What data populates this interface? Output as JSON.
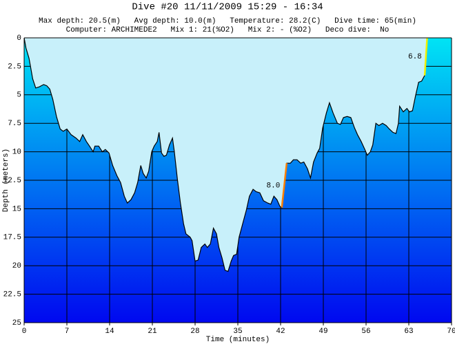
{
  "chart_data": {
    "type": "area",
    "title": "Dive #20  11/11/2009  15:29 - 16:34",
    "subtitle_lines": [
      "Max depth: 20.5(m)   Avg depth: 10.0(m)   Temperature: 28.2(C)   Dive time: 65(min)",
      "Computer: ARCHIMEDE2   Mix 1: 21(%O2)   Mix 2: - (%O2)   Deco dive:  No"
    ],
    "x_label": "Time (minutes)",
    "y_label": "Depth (meters)",
    "xlim": [
      0,
      70
    ],
    "xticks": [
      0,
      7,
      14,
      21,
      28,
      35,
      42,
      49,
      56,
      63,
      70
    ],
    "ylim": [
      0,
      25
    ],
    "yticks": [
      0,
      2.5,
      5,
      7.5,
      10,
      12.5,
      15,
      17.5,
      20,
      22.5,
      25
    ],
    "y_inverted": true,
    "grid": true,
    "line_color": "#000000",
    "surface_color": "#c8f0fa",
    "water_colors": [
      "#00e4f4",
      "#0008f0"
    ],
    "x": [
      0,
      0.3,
      0.8,
      1.0,
      1.4,
      1.9,
      2.5,
      3.2,
      3.7,
      4.2,
      4.7,
      5.3,
      5.9,
      6.4,
      7.0,
      7.7,
      8.5,
      9.1,
      9.6,
      10.2,
      10.7,
      11.3,
      11.6,
      12.2,
      12.8,
      13.3,
      13.9,
      14.5,
      15.2,
      15.8,
      16.4,
      16.9,
      17.5,
      18.1,
      18.6,
      19.1,
      19.5,
      20.0,
      20.4,
      20.9,
      21.3,
      21.8,
      22.1,
      22.5,
      22.9,
      23.3,
      23.8,
      24.3,
      24.6,
      25.1,
      25.6,
      26.1,
      26.5,
      27.2,
      27.5,
      28.0,
      28.5,
      29.0,
      29.6,
      30.0,
      30.5,
      31.0,
      31.5,
      31.9,
      32.4,
      32.9,
      33.4,
      33.9,
      34.3,
      34.8,
      35.2,
      35.8,
      36.4,
      36.9,
      37.5,
      38.0,
      38.6,
      39.2,
      39.9,
      40.4,
      40.9,
      41.4,
      41.9,
      42.2,
      42.7,
      43.0,
      43.6,
      44.1,
      44.7,
      45.3,
      45.8,
      46.4,
      46.9,
      47.4,
      48.0,
      48.4,
      48.9,
      49.5,
      50.0,
      50.6,
      51.3,
      51.8,
      52.3,
      52.9,
      53.5,
      54.1,
      54.6,
      55.2,
      55.8,
      56.2,
      56.7,
      57.1,
      57.6,
      58.1,
      58.7,
      59.3,
      59.8,
      60.4,
      60.9,
      61.3,
      61.5,
      62.1,
      62.7,
      63.1,
      63.6,
      64.1,
      64.6,
      65.1,
      65.6,
      66.0
    ],
    "values": [
      0,
      0.9,
      1.8,
      2.4,
      3.6,
      4.4,
      4.3,
      4.1,
      4.2,
      4.5,
      5.4,
      6.9,
      8.0,
      8.2,
      8.0,
      8.5,
      8.8,
      9.1,
      8.5,
      9.1,
      9.5,
      10.0,
      9.5,
      9.5,
      10.0,
      9.8,
      10.1,
      11.2,
      12.1,
      12.7,
      13.9,
      14.5,
      14.2,
      13.6,
      12.7,
      11.2,
      11.9,
      12.3,
      11.7,
      10.0,
      9.5,
      9.1,
      8.3,
      10.1,
      10.4,
      10.3,
      9.4,
      8.8,
      10.0,
      12.4,
      14.5,
      16.3,
      17.2,
      17.5,
      17.8,
      19.6,
      19.5,
      18.4,
      18.1,
      18.4,
      18.1,
      16.7,
      17.2,
      18.4,
      19.3,
      20.4,
      20.5,
      19.6,
      19.1,
      19.0,
      17.5,
      16.3,
      15.1,
      13.9,
      13.3,
      13.5,
      13.6,
      14.3,
      14.5,
      14.6,
      13.9,
      14.2,
      14.8,
      14.9,
      12.5,
      11.0,
      11.0,
      10.7,
      10.7,
      11.0,
      10.9,
      11.5,
      12.3,
      10.9,
      10.1,
      9.7,
      7.9,
      6.6,
      5.7,
      6.6,
      7.5,
      7.6,
      7.0,
      6.9,
      7.0,
      7.9,
      8.5,
      9.1,
      9.8,
      10.3,
      10.0,
      9.4,
      7.5,
      7.7,
      7.5,
      7.7,
      8.0,
      8.3,
      8.4,
      7.5,
      6.0,
      6.5,
      6.2,
      6.5,
      6.4,
      5.1,
      3.9,
      3.8,
      3.3,
      0
    ],
    "annotations": [
      {
        "text": "8.0",
        "x": [
          42.2,
          43.0
        ],
        "y": [
          14.9,
          11.0
        ],
        "color": "#ff8000"
      },
      {
        "text": "6.8",
        "x": [
          65.6,
          66.0
        ],
        "y": [
          3.3,
          0
        ],
        "color": "#f0f000"
      }
    ]
  }
}
